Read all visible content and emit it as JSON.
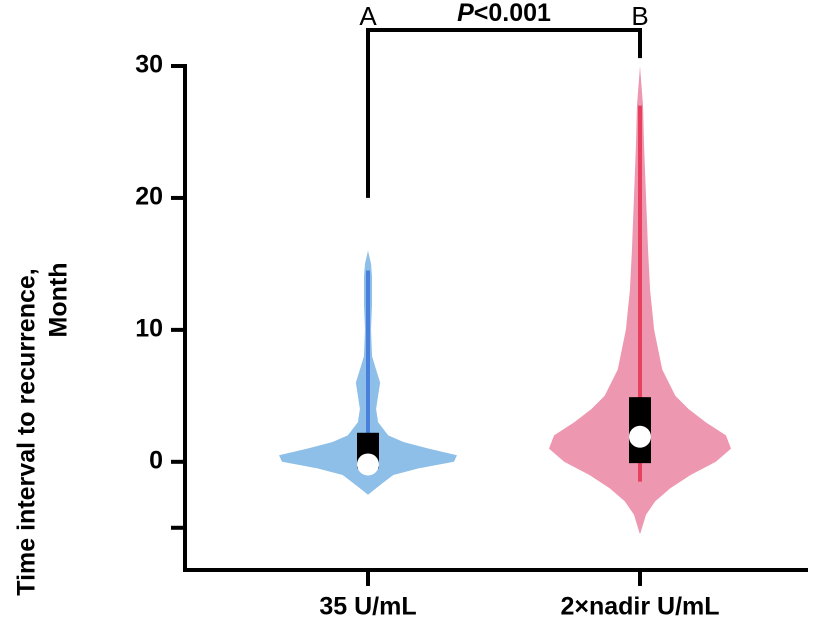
{
  "chart_data": {
    "type": "violin",
    "ylabel": [
      "Time interval to recurrence,",
      "Month"
    ],
    "categories": [
      "35 U/mL",
      "2×nadir U/mL"
    ],
    "ylim": [
      -8.2,
      30
    ],
    "yticks": [
      0,
      10,
      20,
      30
    ],
    "yticks_unlabeled": [
      -5
    ],
    "series": [
      {
        "color": "#8dbfe8",
        "line_color": "#4a80dc",
        "median": -0.2,
        "q1": -0.5,
        "q3": 2.2,
        "min": -0.6,
        "max": 14.5,
        "density_y": [
          -2.5,
          -2,
          -1,
          -0.5,
          0,
          0.5,
          1,
          1.5,
          2,
          3,
          4,
          5,
          6,
          7,
          8,
          10,
          12,
          14,
          15,
          16
        ],
        "density": [
          0,
          8,
          25,
          50,
          85,
          88,
          60,
          35,
          20,
          10,
          8,
          10,
          12,
          8,
          4,
          3,
          4,
          4,
          3,
          0
        ]
      },
      {
        "color": "#ee97b0",
        "line_color": "#e8415f",
        "median": 1.9,
        "q1": -0.1,
        "q3": 4.9,
        "min": -1.5,
        "max": 27,
        "density_y": [
          -5.5,
          -4,
          -3,
          -2,
          -1,
          0,
          1,
          2,
          3,
          4,
          5,
          7,
          10,
          13,
          16,
          20,
          24,
          27,
          30
        ],
        "density": [
          0,
          6,
          15,
          30,
          50,
          75,
          90,
          85,
          65,
          48,
          35,
          22,
          14,
          10,
          8,
          6,
          4,
          3,
          0
        ]
      }
    ],
    "bracket": {
      "left_label": "A",
      "right_label": "B",
      "text": "P<0.001",
      "ends": [
        20,
        30.6
      ]
    }
  }
}
